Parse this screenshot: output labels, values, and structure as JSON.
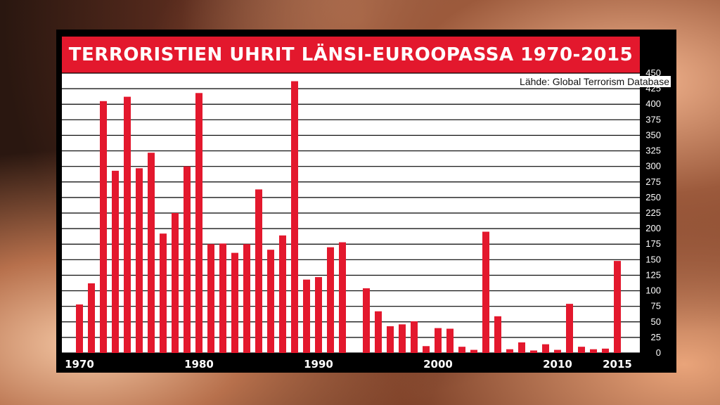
{
  "chart_data": {
    "type": "bar",
    "title": "TERRORISTIEN UHRIT LÄNSI-EUROOPASSA 1970-2015",
    "source": "Lähde: Global Terrorism Database",
    "xlabel": "",
    "ylabel": "",
    "ylim": [
      0,
      450
    ],
    "yticks": [
      0,
      25,
      50,
      75,
      100,
      125,
      150,
      175,
      200,
      225,
      250,
      275,
      300,
      325,
      350,
      375,
      400,
      425,
      450
    ],
    "xtick_labels": [
      "1970",
      "1980",
      "1990",
      "2000",
      "2010",
      "2015"
    ],
    "grid": true,
    "bar_color": "#e3182d",
    "categories": [
      1970,
      1971,
      1972,
      1973,
      1974,
      1975,
      1976,
      1977,
      1978,
      1979,
      1980,
      1981,
      1982,
      1983,
      1984,
      1985,
      1986,
      1987,
      1988,
      1989,
      1990,
      1991,
      1992,
      1993,
      1994,
      1995,
      1996,
      1997,
      1998,
      1999,
      2000,
      2001,
      2002,
      2003,
      2004,
      2005,
      2006,
      2007,
      2008,
      2009,
      2010,
      2011,
      2012,
      2013,
      2014,
      2015
    ],
    "values": [
      78,
      112,
      405,
      293,
      412,
      297,
      322,
      192,
      225,
      300,
      418,
      175,
      176,
      161,
      175,
      263,
      166,
      189,
      437,
      118,
      122,
      170,
      178,
      0,
      104,
      67,
      43,
      46,
      51,
      11,
      40,
      39,
      10,
      5,
      195,
      59,
      6,
      17,
      4,
      14,
      5,
      79,
      10,
      6,
      7,
      148
    ]
  }
}
